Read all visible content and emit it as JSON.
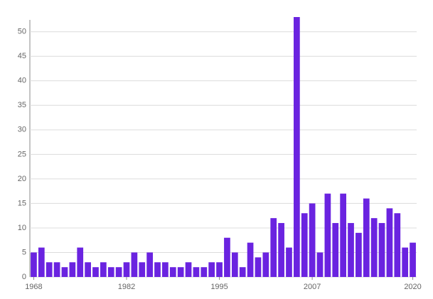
{
  "chart_data": {
    "type": "bar",
    "categories": [
      "1968",
      null,
      null,
      null,
      null,
      null,
      null,
      null,
      null,
      null,
      null,
      null,
      "1982",
      null,
      null,
      null,
      null,
      null,
      null,
      null,
      null,
      null,
      null,
      null,
      "1995",
      null,
      null,
      null,
      null,
      null,
      null,
      null,
      null,
      null,
      null,
      null,
      "2007",
      null,
      null,
      null,
      null,
      null,
      null,
      null,
      null,
      null,
      null,
      null,
      null,
      "2020"
    ],
    "values": [
      5,
      6,
      3,
      3,
      2,
      3,
      6,
      3,
      2,
      3,
      2,
      2,
      3,
      5,
      3,
      5,
      3,
      3,
      2,
      2,
      3,
      2,
      2,
      3,
      3,
      8,
      5,
      2,
      7,
      4,
      5,
      12,
      11,
      6,
      53,
      13,
      15,
      5,
      17,
      11,
      17,
      11,
      9,
      16,
      12,
      11,
      14,
      13,
      6,
      7
    ],
    "color": "#6a23e0",
    "ylim": [
      0,
      53
    ],
    "yticks": [
      0,
      5,
      10,
      15,
      20,
      25,
      30,
      35,
      40,
      45,
      50
    ],
    "grid": true
  }
}
